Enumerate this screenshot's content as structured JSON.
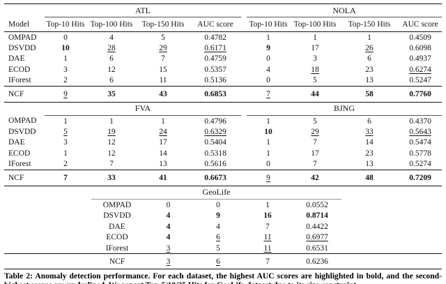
{
  "palette": {
    "text_color": "#111111",
    "rule_color": "#111111",
    "cmidrule_color": "#555555",
    "geolife_rule_color": "#9a9a9a",
    "background": "#ffffff"
  },
  "header": {
    "model_label": "Model",
    "subcols": [
      "Top-10 Hits",
      "Top-100 Hits",
      "Top-150 Hits",
      "AUC score"
    ]
  },
  "sections": [
    {
      "left_group": "ATL",
      "right_group": "NOLA",
      "rows": [
        {
          "model": "OMPAD",
          "cells": [
            {
              "t": "0"
            },
            {
              "t": "4"
            },
            {
              "t": "5"
            },
            {
              "t": "0.4782"
            },
            {
              "t": "1"
            },
            {
              "t": "1"
            },
            {
              "t": "1"
            },
            {
              "t": "0.4509"
            }
          ]
        },
        {
          "model": "DSVDD",
          "cells": [
            {
              "t": "10",
              "s": "b"
            },
            {
              "t": "28",
              "s": "u"
            },
            {
              "t": "29",
              "s": "u"
            },
            {
              "t": "0.6171",
              "s": "u"
            },
            {
              "t": "9",
              "s": "b"
            },
            {
              "t": "17"
            },
            {
              "t": "26",
              "s": "u"
            },
            {
              "t": "0.6098"
            }
          ]
        },
        {
          "model": "DAE",
          "cells": [
            {
              "t": "1"
            },
            {
              "t": "6"
            },
            {
              "t": "7"
            },
            {
              "t": "0.4759"
            },
            {
              "t": "0"
            },
            {
              "t": "3"
            },
            {
              "t": "6"
            },
            {
              "t": "0.4937"
            }
          ]
        },
        {
          "model": "ECOD",
          "cells": [
            {
              "t": "3"
            },
            {
              "t": "12"
            },
            {
              "t": "15"
            },
            {
              "t": "0.5357"
            },
            {
              "t": "4"
            },
            {
              "t": "18",
              "s": "u"
            },
            {
              "t": "23"
            },
            {
              "t": "0.6274",
              "s": "u"
            }
          ]
        },
        {
          "model": "IForest",
          "cells": [
            {
              "t": "2"
            },
            {
              "t": "6"
            },
            {
              "t": "11"
            },
            {
              "t": "0.5136"
            },
            {
              "t": "0"
            },
            {
              "t": "5"
            },
            {
              "t": "13"
            },
            {
              "t": "0.5247"
            }
          ]
        }
      ],
      "ncf": {
        "model": "NCF",
        "cells": [
          {
            "t": "9",
            "s": "u"
          },
          {
            "t": "35",
            "s": "b"
          },
          {
            "t": "43",
            "s": "b"
          },
          {
            "t": "0.6853",
            "s": "b"
          },
          {
            "t": "7",
            "s": "u"
          },
          {
            "t": "44",
            "s": "b"
          },
          {
            "t": "58",
            "s": "b"
          },
          {
            "t": "0.7760",
            "s": "b"
          }
        ]
      }
    },
    {
      "left_group": "FVA",
      "right_group": "BJNG",
      "rows": [
        {
          "model": "OMPAD",
          "cells": [
            {
              "t": "1"
            },
            {
              "t": "1"
            },
            {
              "t": "1"
            },
            {
              "t": "0.4796"
            },
            {
              "t": "1"
            },
            {
              "t": "5"
            },
            {
              "t": "6"
            },
            {
              "t": "0.4370"
            }
          ]
        },
        {
          "model": "DSVDD",
          "cells": [
            {
              "t": "5",
              "s": "u"
            },
            {
              "t": "19",
              "s": "u"
            },
            {
              "t": "24",
              "s": "u"
            },
            {
              "t": "0.6329",
              "s": "u"
            },
            {
              "t": "10",
              "s": "b"
            },
            {
              "t": "29",
              "s": "u"
            },
            {
              "t": "33",
              "s": "u"
            },
            {
              "t": "0.5643",
              "s": "u"
            }
          ]
        },
        {
          "model": "DAE",
          "cells": [
            {
              "t": "3"
            },
            {
              "t": "12"
            },
            {
              "t": "17"
            },
            {
              "t": "0.5404"
            },
            {
              "t": "1"
            },
            {
              "t": "7"
            },
            {
              "t": "14"
            },
            {
              "t": "0.5474"
            }
          ]
        },
        {
          "model": "ECOD",
          "cells": [
            {
              "t": "1"
            },
            {
              "t": "12"
            },
            {
              "t": "14"
            },
            {
              "t": "0.5318"
            },
            {
              "t": "1"
            },
            {
              "t": "17"
            },
            {
              "t": "23"
            },
            {
              "t": "0.5778"
            }
          ]
        },
        {
          "model": "IForest",
          "cells": [
            {
              "t": "2"
            },
            {
              "t": "7"
            },
            {
              "t": "13"
            },
            {
              "t": "0.5616"
            },
            {
              "t": "0"
            },
            {
              "t": "7"
            },
            {
              "t": "13"
            },
            {
              "t": "0.5274"
            }
          ]
        }
      ],
      "ncf": {
        "model": "NCF",
        "cells": [
          {
            "t": "7",
            "s": "b"
          },
          {
            "t": "33",
            "s": "b"
          },
          {
            "t": "41",
            "s": "b"
          },
          {
            "t": "0.6673",
            "s": "b"
          },
          {
            "t": "9",
            "s": "u"
          },
          {
            "t": "42",
            "s": "b"
          },
          {
            "t": "48",
            "s": "b"
          },
          {
            "t": "0.7209",
            "s": "b"
          }
        ]
      }
    }
  ],
  "geolife": {
    "title": "GeoLife",
    "rows": [
      {
        "model": "OMPAD",
        "cells": [
          {
            "t": "0"
          },
          {
            "t": "0"
          },
          {
            "t": "1"
          },
          {
            "t": "0.0552"
          }
        ]
      },
      {
        "model": "DSVDD",
        "cells": [
          {
            "t": "4",
            "s": "b"
          },
          {
            "t": "9",
            "s": "b"
          },
          {
            "t": "16",
            "s": "b"
          },
          {
            "t": "0.8714",
            "s": "b"
          }
        ]
      },
      {
        "model": "DAE",
        "cells": [
          {
            "t": "4",
            "s": "b"
          },
          {
            "t": "4"
          },
          {
            "t": "7"
          },
          {
            "t": "0.4422"
          }
        ]
      },
      {
        "model": "ECOD",
        "cells": [
          {
            "t": "4",
            "s": "b"
          },
          {
            "t": "6",
            "s": "u"
          },
          {
            "t": "11",
            "s": "u"
          },
          {
            "t": "0.6977",
            "s": "u"
          }
        ]
      },
      {
        "model": "IForest",
        "cells": [
          {
            "t": "3",
            "s": "u"
          },
          {
            "t": "5"
          },
          {
            "t": "11",
            "s": "u"
          },
          {
            "t": "0.6531"
          }
        ]
      }
    ],
    "ncf": {
      "model": "NCF",
      "cells": [
        {
          "t": "3",
          "s": "u"
        },
        {
          "t": "6",
          "s": "u"
        },
        {
          "t": "7"
        },
        {
          "t": "0.6236"
        }
      ]
    }
  },
  "caption": {
    "text": "Table 2: Anomaly detection performance. For each dataset, the highest AUC scores are highlighted in bold, and the second-highest scores are underlined. We report Top-5/10/25 Hits for GeoLife dataset due to its size constraint."
  }
}
